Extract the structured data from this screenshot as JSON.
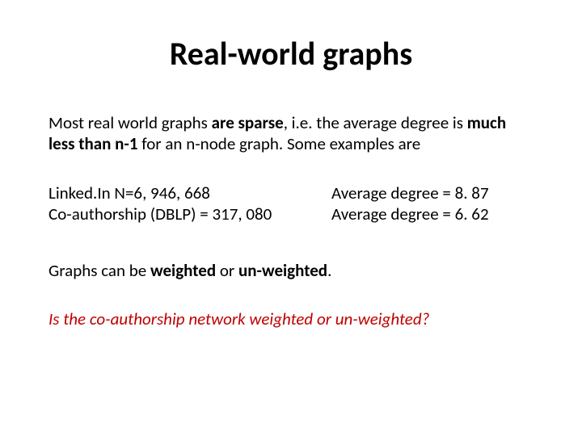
{
  "title": "Real-world graphs",
  "intro": {
    "prefix": "Most real world graphs ",
    "emph1": "are sparse",
    "mid": ", i.e. the average degree is ",
    "emph2": "much less than n-1",
    "suffix": " for an n-node graph. Some examples are"
  },
  "examples": {
    "row1_left": "Linked.In N=6, 946, 668",
    "row1_right": "Average degree = 8. 87",
    "row2_left": "Co-authorship (DBLP) = 317, 080",
    "row2_right": "Average degree = 6. 62"
  },
  "weighted": {
    "prefix": "Graphs can be ",
    "w1": "weighted",
    "mid": " or ",
    "w2": "un-weighted",
    "suffix": "."
  },
  "question": "Is the co-authorship network weighted or un-weighted?",
  "colors": {
    "text": "#000000",
    "question": "#c00000",
    "background": "#ffffff"
  },
  "typography": {
    "title_fontsize": 40,
    "body_fontsize": 21,
    "title_weight": 700,
    "font_family": "Calibri"
  }
}
